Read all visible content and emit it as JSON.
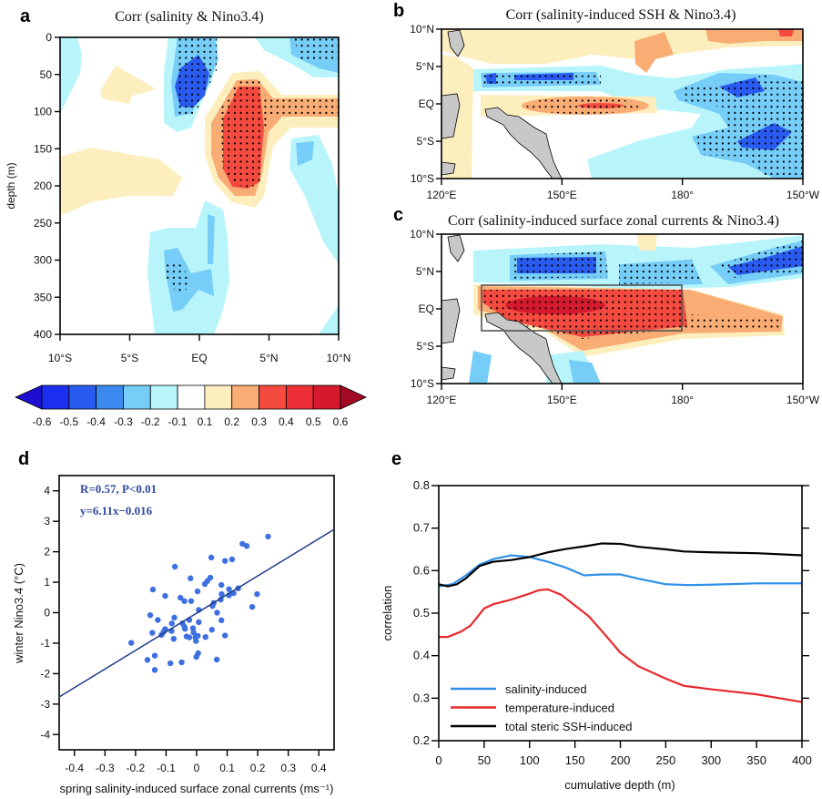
{
  "colorbar": {
    "labels": [
      "-0.6",
      "-0.5",
      "-0.4",
      "-0.3",
      "-0.2",
      "-0.1",
      "0.1",
      "0.2",
      "0.3",
      "0.4",
      "0.5",
      "0.6"
    ],
    "colors": [
      "#1c0fcf",
      "#1c2ef0",
      "#2a5bf0",
      "#3a8af0",
      "#75cdf8",
      "#b8f5fb",
      "#ffffff",
      "#fdeebe",
      "#f9ac74",
      "#f54a40",
      "#ee2f38",
      "#d51a2e",
      "#a50a25"
    ]
  },
  "chart_data": [
    {
      "panel": "a",
      "type": "heatmap",
      "title": "Corr (salinity & Nino3.4)",
      "ylabel": "depth (m)",
      "xticks": [
        "10°S",
        "5°S",
        "EQ",
        "5°N",
        "10°N"
      ],
      "yticks": [
        "0",
        "50",
        "100",
        "150",
        "200",
        "250",
        "300",
        "350",
        "400"
      ],
      "ylim": [
        400,
        0
      ],
      "stippling": "significant regions"
    },
    {
      "panel": "b",
      "type": "heatmap",
      "title": "Corr (salinity-induced SSH & Nino3.4)",
      "xticks": [
        "120°E",
        "150°E",
        "180°",
        "150°W"
      ],
      "yticks": [
        "10°N",
        "5°N",
        "EQ",
        "5°S",
        "10°S"
      ]
    },
    {
      "panel": "c",
      "type": "heatmap",
      "title": "Corr (salinity-induced surface zonal currents & Nino3.4)",
      "xticks": [
        "120°E",
        "150°E",
        "180°",
        "150°W"
      ],
      "yticks": [
        "10°N",
        "5°N",
        "EQ",
        "5°S",
        "10°S"
      ],
      "box_region": {
        "lon": [
          130,
          180
        ],
        "lat": [
          -3,
          3
        ]
      }
    },
    {
      "panel": "d",
      "type": "scatter",
      "xlabel": "spring salinity-induced surface zonal currents (ms⁻¹)",
      "ylabel": "winter Nino3.4 (°C)",
      "xlim": [
        -0.45,
        0.45
      ],
      "ylim": [
        -4.5,
        4.5
      ],
      "xticks": [
        "-0.4",
        "-0.3",
        "-0.2",
        "-0.1",
        "0",
        "0.1",
        "0.2",
        "0.3",
        "0.4"
      ],
      "yticks": [
        "4",
        "3",
        "2",
        "1",
        "0",
        "-1",
        "-2",
        "-3",
        "-4"
      ],
      "annotations": [
        "R=0.57,  P<0.01",
        "y=6.11x−0.016"
      ],
      "fit": {
        "slope": 6.11,
        "intercept": -0.016
      },
      "point_color": "#3d6fe0",
      "line_color": "#1f3a8a",
      "points": [
        [
          0.234,
          2.5
        ],
        [
          0.15,
          2.26
        ],
        [
          0.164,
          2.19
        ],
        [
          0.048,
          1.81
        ],
        [
          0.093,
          1.7
        ],
        [
          0.116,
          1.75
        ],
        [
          -0.071,
          1.51
        ],
        [
          -0.02,
          1.13
        ],
        [
          0.045,
          1.15
        ],
        [
          0.035,
          1.04
        ],
        [
          0.027,
          0.94
        ],
        [
          0.081,
          0.91
        ],
        [
          -0.143,
          0.76
        ],
        [
          0.106,
          0.77
        ],
        [
          0.136,
          0.8
        ],
        [
          0.121,
          0.64
        ],
        [
          0.003,
          0.7
        ],
        [
          0.082,
          0.61
        ],
        [
          0.106,
          0.57
        ],
        [
          0.198,
          0.61
        ],
        [
          -0.103,
          0.55
        ],
        [
          -0.053,
          0.49
        ],
        [
          -0.04,
          0.38
        ],
        [
          -0.018,
          0.38
        ],
        [
          0.079,
          0.43
        ],
        [
          0.056,
          0.32
        ],
        [
          0.052,
          0.22
        ],
        [
          0.007,
          0.09
        ],
        [
          0.182,
          0.19
        ],
        [
          -0.152,
          -0.08
        ],
        [
          -0.073,
          -0.16
        ],
        [
          0.067,
          0.0
        ],
        [
          -0.127,
          -0.24
        ],
        [
          -0.024,
          -0.24
        ],
        [
          0.081,
          -0.25
        ],
        [
          -0.081,
          -0.35
        ],
        [
          -0.046,
          -0.35
        ],
        [
          0.007,
          -0.31
        ],
        [
          -0.04,
          -0.46
        ],
        [
          -0.038,
          -0.53
        ],
        [
          -0.103,
          -0.54
        ],
        [
          -0.012,
          -0.51
        ],
        [
          0.05,
          -0.56
        ],
        [
          -0.145,
          -0.66
        ],
        [
          -0.108,
          -0.63
        ],
        [
          -0.082,
          -0.6
        ],
        [
          -0.115,
          -0.73
        ],
        [
          -0.01,
          -0.65
        ],
        [
          -0.033,
          -0.78
        ],
        [
          -0.024,
          -0.81
        ],
        [
          -0.004,
          -0.81
        ],
        [
          0.004,
          -0.76
        ],
        [
          0.029,
          -0.8
        ],
        [
          0.093,
          -0.75
        ],
        [
          -0.075,
          -0.86
        ],
        [
          -0.002,
          -0.93
        ],
        [
          -0.214,
          -0.99
        ],
        [
          0.005,
          -1.33
        ],
        [
          -0.001,
          -1.45
        ],
        [
          -0.137,
          -1.41
        ],
        [
          -0.161,
          -1.55
        ],
        [
          0.066,
          -1.54
        ],
        [
          -0.086,
          -1.66
        ],
        [
          -0.049,
          -1.63
        ],
        [
          -0.137,
          -1.88
        ]
      ]
    },
    {
      "panel": "e",
      "type": "line",
      "xlabel": "cumulative depth (m)",
      "ylabel": "correlation",
      "xlim": [
        0,
        400
      ],
      "ylim": [
        0.2,
        0.8
      ],
      "xticks": [
        "0",
        "50",
        "100",
        "150",
        "200",
        "250",
        "300",
        "350",
        "400"
      ],
      "yticks": [
        "0.8",
        "0.7",
        "0.6",
        "0.5",
        "0.4",
        "0.3",
        "0.2"
      ],
      "legend": "bottom-left",
      "series": [
        {
          "name": "salinity-induced",
          "color": "#2d8fe8",
          "x": [
            0,
            15,
            30,
            45,
            60,
            80,
            100,
            120,
            140,
            160,
            180,
            200,
            220,
            250,
            275,
            300,
            350,
            400
          ],
          "y": [
            0.563,
            0.568,
            0.589,
            0.614,
            0.627,
            0.636,
            0.632,
            0.621,
            0.607,
            0.589,
            0.591,
            0.591,
            0.581,
            0.568,
            0.566,
            0.567,
            0.57,
            0.57
          ]
        },
        {
          "name": "temperature-induced",
          "color": "#e8282c",
          "x": [
            0,
            10,
            25,
            35,
            50,
            60,
            80,
            100,
            110,
            120,
            135,
            150,
            165,
            180,
            200,
            220,
            250,
            270,
            300,
            350,
            400
          ],
          "y": [
            0.444,
            0.444,
            0.457,
            0.471,
            0.511,
            0.521,
            0.532,
            0.546,
            0.554,
            0.556,
            0.543,
            0.518,
            0.493,
            0.457,
            0.407,
            0.375,
            0.346,
            0.329,
            0.321,
            0.309,
            0.291
          ]
        },
        {
          "name": "total steric SSH-induced",
          "color": "#000000",
          "x": [
            0,
            10,
            20,
            30,
            45,
            60,
            80,
            100,
            120,
            140,
            160,
            180,
            200,
            220,
            250,
            270,
            300,
            350,
            400
          ],
          "y": [
            0.568,
            0.563,
            0.568,
            0.582,
            0.611,
            0.621,
            0.625,
            0.632,
            0.643,
            0.651,
            0.657,
            0.664,
            0.663,
            0.656,
            0.65,
            0.645,
            0.643,
            0.641,
            0.636
          ]
        }
      ]
    }
  ],
  "panel_letters": {
    "a": "a",
    "b": "b",
    "c": "c",
    "d": "d",
    "e": "e"
  }
}
